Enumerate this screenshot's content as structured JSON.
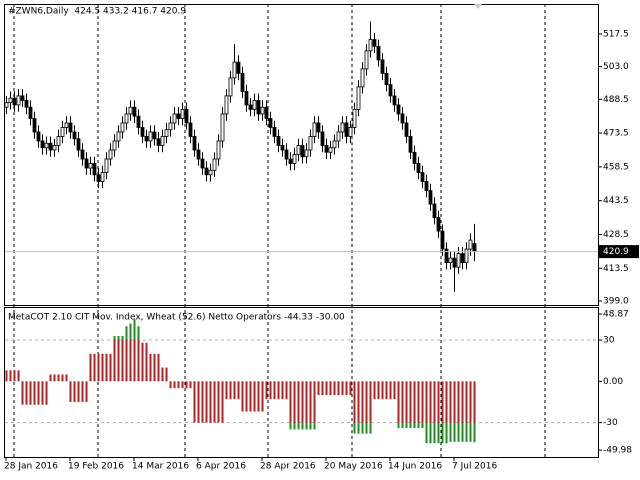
{
  "chart_data": [
    {
      "type": "candlestick",
      "title": "#ZWN6,Daily  424.5 433.2 416.7 420.9",
      "categories": [
        "28 Jan 2016",
        null,
        null,
        null,
        null,
        null,
        null,
        null,
        null,
        null,
        null,
        null,
        null,
        null,
        null,
        null,
        "19 Feb 2016",
        null,
        null,
        null,
        null,
        null,
        null,
        null,
        null,
        null,
        null,
        null,
        null,
        null,
        null,
        null,
        "14 Mar 2016",
        null,
        null,
        null,
        null,
        null,
        null,
        null,
        null,
        null,
        null,
        null,
        null,
        null,
        null,
        null,
        "6 Apr 2016",
        null,
        null,
        null,
        null,
        null,
        null,
        null,
        null,
        null,
        null,
        null,
        null,
        null,
        null,
        null,
        "28 Apr 2016",
        null,
        null,
        null,
        null,
        null,
        null,
        null,
        null,
        null,
        null,
        null,
        null,
        null,
        null,
        null,
        "20 May 2016",
        null,
        null,
        null,
        null,
        null,
        null,
        null,
        null,
        null,
        null,
        null,
        null,
        null,
        null,
        null,
        "14 Jun 2016",
        null,
        null,
        null,
        null,
        null,
        null,
        null,
        null,
        null,
        null,
        null,
        null,
        null,
        null,
        null,
        "7 Jul 2016",
        null,
        null,
        null,
        null,
        null
      ],
      "open": [
        485,
        487,
        489,
        486,
        490,
        488,
        485,
        480,
        474,
        470,
        467,
        469,
        466,
        468,
        472,
        476,
        478,
        474,
        471,
        466,
        462,
        458,
        460,
        455,
        452,
        456,
        462,
        466,
        470,
        474,
        478,
        482,
        485,
        481,
        476,
        472,
        470,
        474,
        471,
        468,
        472,
        475,
        478,
        482,
        480,
        484,
        478,
        472,
        466,
        462,
        458,
        455,
        457,
        462,
        470,
        482,
        490,
        498,
        505,
        500,
        492,
        486,
        484,
        488,
        482,
        485,
        480,
        476,
        472,
        468,
        466,
        462,
        460,
        464,
        468,
        463,
        466,
        472,
        478,
        474,
        468,
        465,
        467,
        470,
        474,
        478,
        472,
        476,
        484,
        494,
        502,
        510,
        515,
        512,
        506,
        500,
        495,
        490,
        486,
        482,
        478,
        472,
        465,
        460,
        456,
        452,
        448,
        442,
        436,
        430,
        422,
        416,
        418,
        414,
        420,
        416,
        422,
        424.5
      ],
      "high": [
        490,
        492,
        492,
        493,
        493,
        491,
        488,
        483,
        477,
        473,
        472,
        472,
        471,
        475,
        479,
        481,
        481,
        477,
        474,
        469,
        465,
        463,
        463,
        458,
        459,
        465,
        469,
        473,
        477,
        481,
        485,
        488,
        488,
        484,
        479,
        475,
        477,
        477,
        474,
        475,
        478,
        481,
        485,
        485,
        487,
        487,
        481,
        475,
        469,
        465,
        461,
        460,
        465,
        473,
        485,
        493,
        501,
        513,
        508,
        503,
        495,
        489,
        491,
        491,
        488,
        488,
        483,
        479,
        475,
        471,
        469,
        465,
        467,
        471,
        471,
        469,
        475,
        481,
        481,
        477,
        471,
        470,
        473,
        477,
        481,
        481,
        479,
        487,
        497,
        505,
        513,
        523,
        518,
        515,
        509,
        503,
        498,
        493,
        489,
        485,
        481,
        475,
        468,
        463,
        459,
        455,
        451,
        445,
        439,
        433,
        425,
        421,
        421,
        423,
        423,
        425,
        429,
        433.2
      ],
      "low": [
        482,
        484,
        483,
        483,
        485,
        482,
        477,
        471,
        467,
        464,
        464,
        463,
        463,
        465,
        469,
        473,
        471,
        468,
        463,
        459,
        455,
        455,
        452,
        449,
        449,
        453,
        459,
        463,
        467,
        471,
        475,
        479,
        478,
        473,
        469,
        467,
        467,
        468,
        465,
        465,
        469,
        472,
        475,
        477,
        477,
        475,
        469,
        463,
        459,
        455,
        452,
        452,
        454,
        459,
        467,
        479,
        487,
        495,
        497,
        489,
        483,
        481,
        481,
        479,
        479,
        477,
        473,
        469,
        465,
        463,
        459,
        457,
        457,
        461,
        460,
        460,
        463,
        469,
        471,
        465,
        462,
        462,
        464,
        467,
        471,
        469,
        469,
        473,
        481,
        491,
        499,
        507,
        509,
        503,
        497,
        492,
        487,
        483,
        479,
        475,
        469,
        462,
        457,
        453,
        449,
        445,
        439,
        433,
        427,
        419,
        413,
        413,
        403,
        411,
        413,
        413,
        419,
        416.7
      ],
      "close": [
        487,
        489,
        486,
        490,
        488,
        485,
        480,
        474,
        470,
        467,
        469,
        466,
        468,
        472,
        476,
        478,
        474,
        471,
        466,
        462,
        458,
        460,
        455,
        452,
        456,
        462,
        466,
        470,
        474,
        478,
        482,
        485,
        481,
        476,
        472,
        470,
        474,
        471,
        468,
        472,
        475,
        478,
        482,
        480,
        484,
        478,
        472,
        466,
        462,
        458,
        455,
        457,
        462,
        470,
        482,
        490,
        498,
        505,
        500,
        492,
        486,
        484,
        488,
        482,
        485,
        480,
        476,
        472,
        468,
        466,
        462,
        460,
        464,
        468,
        463,
        466,
        472,
        478,
        474,
        468,
        465,
        467,
        470,
        474,
        478,
        472,
        476,
        484,
        494,
        502,
        510,
        515,
        512,
        506,
        500,
        495,
        490,
        486,
        482,
        478,
        472,
        465,
        460,
        456,
        452,
        448,
        442,
        436,
        430,
        422,
        416,
        418,
        414,
        420,
        416,
        422,
        426,
        420.9
      ],
      "ylim": [
        397.2,
        530.8
      ],
      "yticks": [
        517.5,
        {
          "value": 503,
          "label": "503.0"
        },
        488.5,
        473.5,
        458.5,
        443.5,
        428.5,
        413.5,
        {
          "value": 399,
          "label": "399.0"
        }
      ],
      "up_color": "#ffffff",
      "down_color": "#000000"
    },
    {
      "type": "bar",
      "title": "MetaCOT 2.10 CIT Mov. Index, Wheat (52.6) Netto Operators -44.33 -30.00",
      "values": [
        8,
        8,
        8,
        8,
        -17,
        -17,
        -17,
        -17,
        -17,
        -17,
        -17,
        5,
        5,
        5,
        5,
        5,
        -15,
        -15,
        -15,
        -15,
        -15,
        20,
        20,
        20,
        20,
        20,
        20,
        33,
        33,
        33,
        40,
        42,
        45,
        40,
        28,
        28,
        20,
        20,
        20,
        10,
        10,
        -5,
        -5,
        -5,
        -5,
        -5,
        -5,
        -30,
        -30,
        -30,
        -30,
        -30,
        -30,
        -30,
        -30,
        -13,
        -13,
        -13,
        -13,
        -22,
        -22,
        -22,
        -22,
        -22,
        -22,
        -13,
        -13,
        -13,
        -13,
        -13,
        -13,
        -35,
        -35,
        -35,
        -35,
        -35,
        -35,
        -35,
        -10,
        -10,
        -10,
        -10,
        -10,
        -10,
        -10,
        -10,
        -10,
        -38,
        -38,
        -38,
        -38,
        -38,
        -13,
        -13,
        -13,
        -13,
        -13,
        -13,
        -34,
        -34,
        -34,
        -34,
        -34,
        -34,
        -34,
        -45,
        -45,
        -45,
        -45,
        -45,
        -45,
        -44,
        -44,
        -44,
        -44,
        -44,
        -44,
        -44.33
      ],
      "ylim": [
        -55,
        54
      ],
      "yticks": [
        48.87,
        30,
        {
          "value": 0,
          "label": "0.00"
        },
        -30,
        -49.98
      ],
      "levels": [
        30,
        -30
      ],
      "color": "#b22222",
      "extreme_color": "#228b22"
    }
  ]
}
